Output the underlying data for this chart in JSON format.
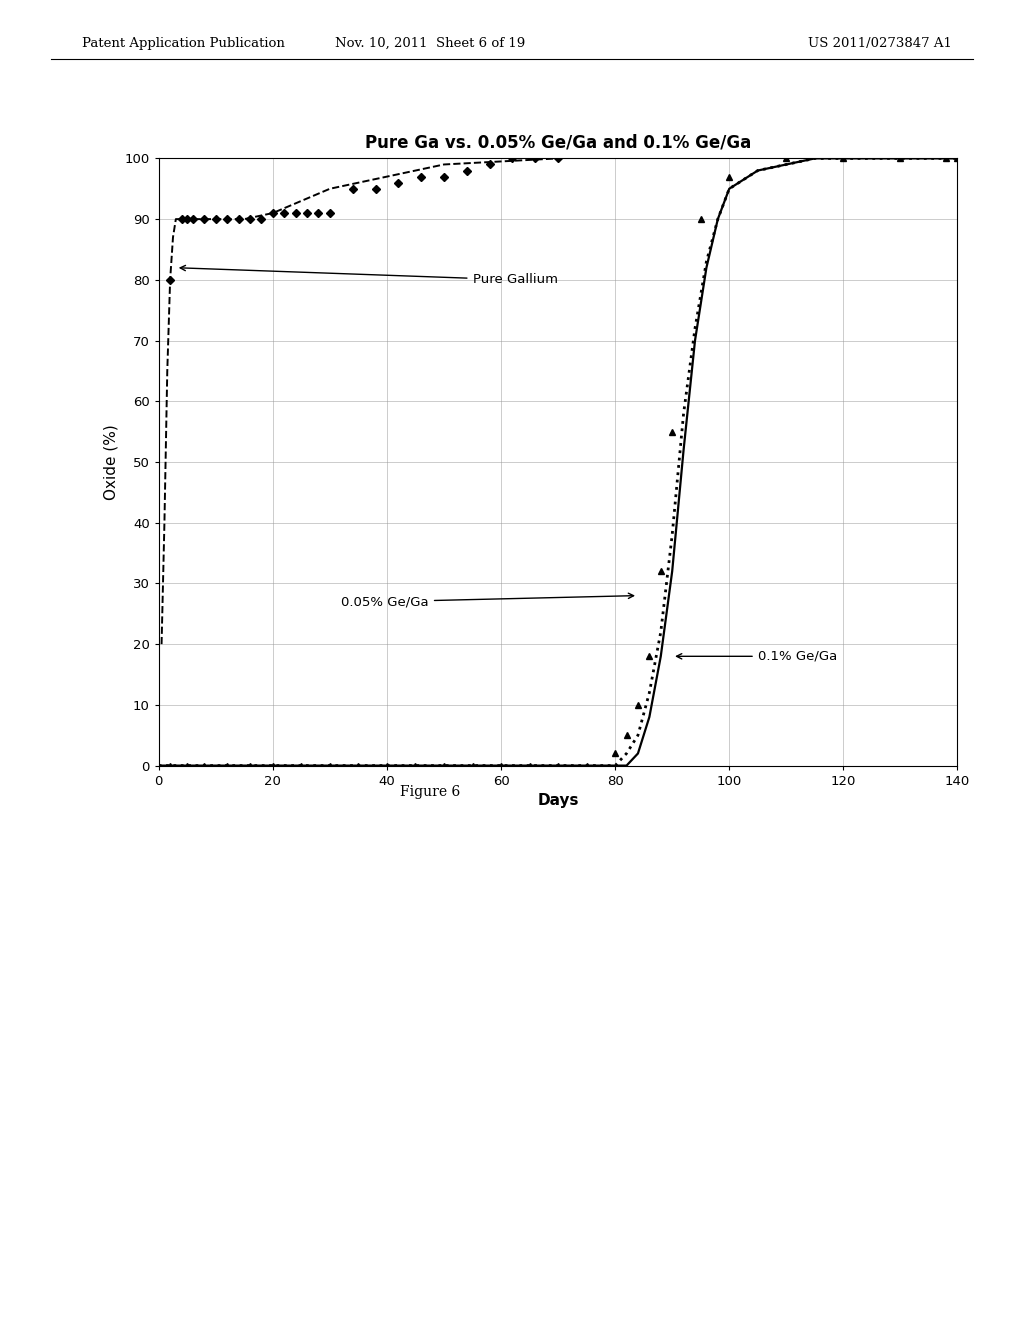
{
  "title": "Pure Ga vs. 0.05% Ge/Ga and 0.1% Ge/Ga",
  "xlabel": "Days",
  "ylabel": "Oxide (%)",
  "xlim": [
    0,
    140
  ],
  "ylim": [
    0,
    100
  ],
  "xticks": [
    0,
    20,
    40,
    60,
    80,
    100,
    120,
    140
  ],
  "yticks": [
    0,
    10,
    20,
    30,
    40,
    50,
    60,
    70,
    80,
    90,
    100
  ],
  "figure_caption": "Figure 6",
  "header_left": "Patent Application Publication",
  "header_center": "Nov. 10, 2011  Sheet 6 of 19",
  "header_right": "US 2011/0273847 A1",
  "pure_ga_pts_x": [
    2,
    4,
    5,
    6,
    8,
    10,
    12,
    14,
    16,
    18,
    20,
    22,
    24,
    26,
    28,
    30,
    34,
    38,
    42,
    46,
    50,
    54,
    58,
    62,
    66,
    70
  ],
  "pure_ga_pts_y": [
    80,
    90,
    90,
    90,
    90,
    90,
    90,
    90,
    90,
    90,
    91,
    91,
    91,
    91,
    91,
    91,
    95,
    95,
    96,
    97,
    97,
    98,
    99,
    100,
    100,
    100
  ],
  "pure_ga_line_x": [
    0.5,
    1,
    1.5,
    2,
    2.5,
    3,
    4,
    5,
    6,
    8,
    10,
    15,
    20,
    25,
    30,
    40,
    50,
    70
  ],
  "pure_ga_line_y": [
    20,
    40,
    65,
    80,
    87,
    90,
    90,
    90,
    90,
    90,
    90,
    90,
    91,
    93,
    95,
    97,
    99,
    100
  ],
  "ge05_line_x": [
    0,
    70,
    75,
    78,
    80,
    82,
    84,
    86,
    88,
    90,
    92,
    94,
    96,
    98,
    100,
    105,
    110,
    115,
    120,
    125,
    130,
    140
  ],
  "ge05_line_y": [
    0,
    0,
    0,
    0,
    0,
    2,
    5,
    12,
    22,
    38,
    58,
    72,
    83,
    90,
    95,
    98,
    99,
    100,
    100,
    100,
    100,
    100
  ],
  "ge01_line_x": [
    0,
    75,
    78,
    80,
    82,
    84,
    86,
    88,
    90,
    92,
    94,
    96,
    98,
    100,
    105,
    110,
    115,
    120,
    125,
    130,
    140
  ],
  "ge01_line_y": [
    0,
    0,
    0,
    0,
    0,
    2,
    8,
    18,
    32,
    52,
    70,
    82,
    90,
    95,
    98,
    99,
    100,
    100,
    100,
    100,
    100
  ],
  "ge01_tri_x": [
    2,
    5,
    8,
    12,
    16,
    20,
    25,
    30,
    35,
    40,
    45,
    50,
    55,
    60,
    65,
    70,
    75,
    80,
    82,
    84,
    86,
    88,
    90,
    95,
    100,
    110,
    120,
    130,
    138,
    140
  ],
  "ge01_tri_y": [
    0,
    0,
    0,
    0,
    0,
    0,
    0,
    0,
    0,
    0,
    0,
    0,
    0,
    0,
    0,
    0,
    0,
    2,
    5,
    10,
    18,
    32,
    55,
    90,
    97,
    100,
    100,
    100,
    100,
    100
  ],
  "bg_color": "#ffffff",
  "line_color": "#000000",
  "grid_color": "#999999",
  "annot_pure_ga": "Pure Gallium",
  "annot_ge05": "0.05% Ge/Ga",
  "annot_ge01": "0.1% Ge/Ga"
}
